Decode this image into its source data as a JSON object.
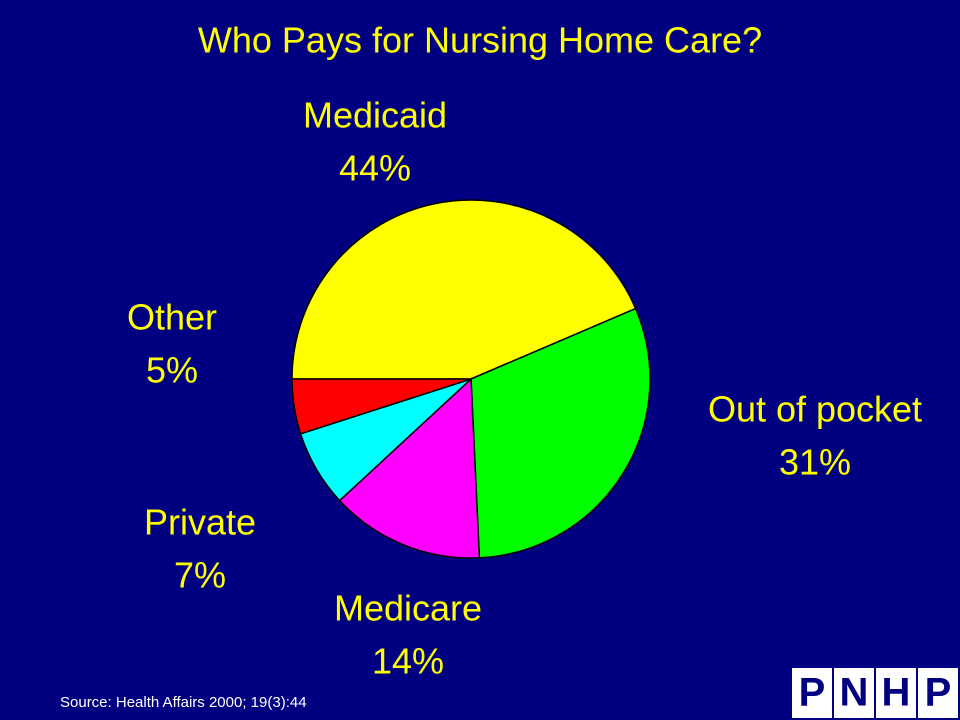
{
  "chart_data": {
    "type": "pie",
    "title": "Who Pays for Nursing Home Care?",
    "categories": [
      "Medicaid",
      "Out of pocket",
      "Medicare",
      "Private",
      "Other"
    ],
    "values": [
      44,
      31,
      14,
      7,
      5
    ],
    "value_labels": [
      "44%",
      "31%",
      "14%",
      "7%",
      "5%"
    ],
    "colors": [
      "#ffff00",
      "#00ff00",
      "#ff00ff",
      "#00ffff",
      "#ff0000"
    ],
    "source": "Source: Health Affairs 2000; 19(3):44",
    "logo": [
      "P",
      "N",
      "H",
      "P"
    ]
  }
}
